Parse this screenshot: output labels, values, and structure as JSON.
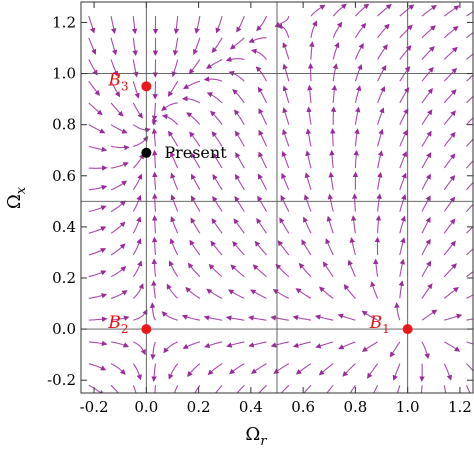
{
  "chart_data": {
    "type": "stream_plot",
    "xlabel": "Ω",
    "xlabel_sub": "r",
    "ylabel": "Ω",
    "ylabel_sub": "x",
    "xlim": [
      -0.25,
      1.25
    ],
    "ylim": [
      -0.25,
      1.28
    ],
    "xticks": [
      "-0.2",
      "0.0",
      "0.2",
      "0.4",
      "0.6",
      "0.8",
      "1.0",
      "1.2"
    ],
    "xtick_values": [
      -0.2,
      0.0,
      0.2,
      0.4,
      0.6,
      0.8,
      1.0,
      1.2
    ],
    "yticks": [
      "-0.2",
      "0.0",
      "0.2",
      "0.4",
      "0.6",
      "0.8",
      "1.0",
      "1.2"
    ],
    "ytick_values": [
      -0.2,
      0.0,
      0.2,
      0.4,
      0.6,
      0.8,
      1.0,
      1.2
    ],
    "grid_x": [
      0.0,
      0.5,
      1.0
    ],
    "grid_y": [
      0.0,
      0.5,
      1.0
    ],
    "stream_color": "#9b2a9b",
    "points": [
      {
        "name": "B",
        "sub": "3",
        "x": 0.0,
        "y": 0.95,
        "color": "#e8191a",
        "label_side": "left"
      },
      {
        "name": "B",
        "sub": "2",
        "x": 0.0,
        "y": 0.0,
        "color": "#e8191a",
        "label_side": "left"
      },
      {
        "name": "B",
        "sub": "1",
        "x": 1.0,
        "y": 0.0,
        "color": "#e8191a",
        "label_side": "left"
      },
      {
        "name": "Present",
        "sub": "",
        "x": 0.0,
        "y": 0.69,
        "color": "#000000",
        "label_side": "right"
      }
    ]
  }
}
